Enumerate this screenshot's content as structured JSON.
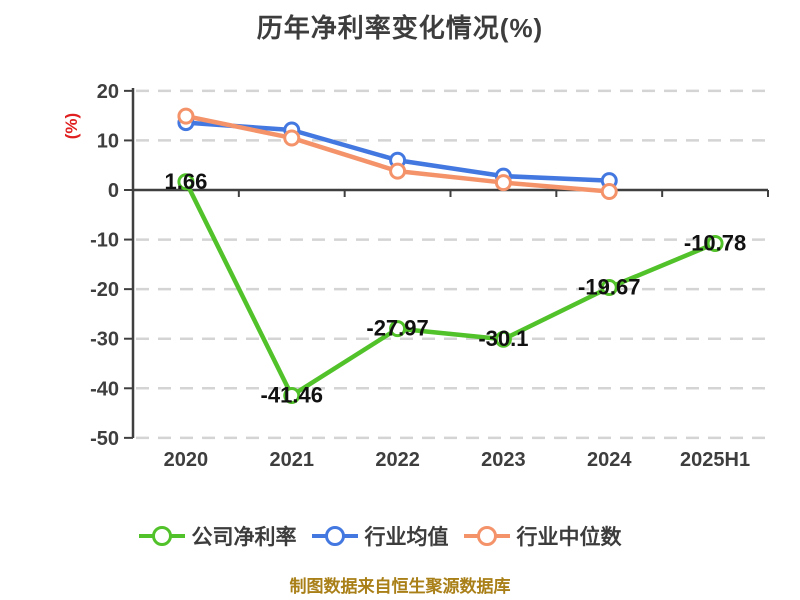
{
  "title": "历年净利率变化情况(%)",
  "y_axis_title": "(%)",
  "footer": "制图数据来自恒生聚源数据库",
  "colors": {
    "background": "#ffffff",
    "title_text": "#3d3d3d",
    "axis_text": "#3e3e3e",
    "axis_line": "#3f3f3f",
    "grid_line": "#d4d4d4",
    "data_label": "#111111",
    "y_axis_title_text": "#e02020",
    "footer_text": "#a97f18",
    "company_green": "#52c22a",
    "industry_mean_blue": "#4478e1",
    "industry_median_orange": "#f4936a"
  },
  "chart_data": {
    "type": "line",
    "title": "历年净利率变化情况(%)",
    "ylabel": "(%)",
    "xlabel": "",
    "categories": [
      "2020",
      "2021",
      "2022",
      "2023",
      "2024",
      "2025H1"
    ],
    "series": [
      {
        "name": "公司净利率",
        "color": "#52c22a",
        "values": [
          1.66,
          -41.46,
          -27.97,
          -30.1,
          -19.67,
          -10.78
        ],
        "point_labels": [
          "1.66",
          "-41.46",
          "-27.97",
          "-30.1",
          "-19.67",
          "-10.78"
        ]
      },
      {
        "name": "行业均值",
        "color": "#4478e1",
        "values": [
          13.6,
          12.1,
          6.0,
          2.8,
          1.9,
          null
        ],
        "point_labels": null
      },
      {
        "name": "行业中位数",
        "color": "#f4936a",
        "values": [
          14.9,
          10.5,
          3.8,
          1.5,
          -0.3,
          null
        ],
        "point_labels": null
      }
    ],
    "ylim": [
      -50,
      20
    ],
    "yticks": [
      20,
      10,
      0,
      -10,
      -20,
      -30,
      -40,
      -50
    ],
    "ytick_step": 10,
    "grid": "horizontal-dashed",
    "marker": "circle-white-fill",
    "legend_position": "bottom"
  }
}
